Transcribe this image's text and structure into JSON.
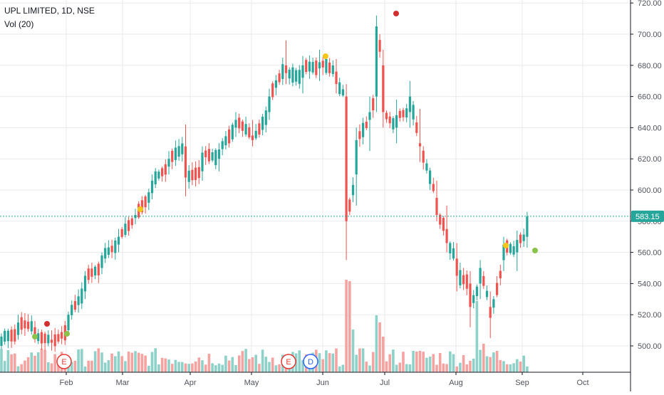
{
  "legend": {
    "title": "UPL LIMITED, 1D, NSE",
    "volume": "Vol (20)"
  },
  "colors": {
    "up": "#26a69a",
    "down": "#ef5350",
    "vol_up": "#8ed1c9",
    "vol_down": "#f5a3a1",
    "grid": "#e8eaee",
    "axis_text": "#50535e",
    "price_line": "#26a69a",
    "price_label_bg": "#26a69a"
  },
  "chart_data": {
    "type": "candlestick",
    "title": "UPL LIMITED, 1D, NSE",
    "x_ticks": [
      "Feb",
      "Mar",
      "Apr",
      "May",
      "Jun",
      "Jul",
      "Aug",
      "Sep",
      "Oct"
    ],
    "y_ticks": [
      "500.00",
      "520.00",
      "540.00",
      "560.00",
      "580.00",
      "600.00",
      "620.00",
      "640.00",
      "660.00",
      "680.00",
      "700.00",
      "720.00"
    ],
    "ylim": [
      482,
      722
    ],
    "last_price": 583.15,
    "last_price_label": "583.15",
    "grid": true,
    "series": [
      {
        "name": "price",
        "ohlc_anchors": [
          [
            0,
            500,
            508,
            498,
            506
          ],
          [
            5,
            507,
            520,
            504,
            515
          ],
          [
            10,
            512,
            516,
            502,
            506
          ],
          [
            15,
            504,
            510,
            497,
            502
          ],
          [
            20,
            510,
            522,
            508,
            520
          ],
          [
            25,
            535,
            548,
            530,
            545
          ],
          [
            30,
            550,
            560,
            546,
            558
          ],
          [
            35,
            565,
            575,
            560,
            570
          ],
          [
            40,
            582,
            588,
            578,
            584
          ],
          [
            45,
            598,
            610,
            594,
            606
          ],
          [
            50,
            615,
            625,
            610,
            620
          ],
          [
            55,
            628,
            642,
            596,
            608
          ],
          [
            60,
            612,
            628,
            606,
            624
          ],
          [
            65,
            620,
            630,
            612,
            626
          ],
          [
            70,
            640,
            650,
            634,
            645
          ],
          [
            75,
            635,
            645,
            628,
            632
          ],
          [
            80,
            650,
            665,
            645,
            660
          ],
          [
            85,
            680,
            696,
            668,
            675
          ],
          [
            90,
            672,
            686,
            662,
            680
          ],
          [
            95,
            678,
            690,
            670,
            682
          ],
          [
            100,
            676,
            684,
            662,
            668
          ],
          [
            103,
            660,
            668,
            555,
            580
          ],
          [
            106,
            610,
            640,
            590,
            632
          ],
          [
            110,
            645,
            660,
            625,
            650
          ],
          [
            112,
            660,
            712,
            650,
            705
          ],
          [
            114,
            680,
            690,
            640,
            650
          ],
          [
            118,
            640,
            658,
            630,
            648
          ],
          [
            122,
            650,
            670,
            640,
            660
          ],
          [
            125,
            630,
            652,
            618,
            628
          ],
          [
            130,
            595,
            606,
            580,
            584
          ],
          [
            133,
            575,
            590,
            560,
            566
          ],
          [
            136,
            556,
            566,
            535,
            545
          ],
          [
            140,
            540,
            548,
            512,
            525
          ],
          [
            143,
            540,
            555,
            530,
            550
          ],
          [
            146,
            525,
            535,
            505,
            518
          ],
          [
            150,
            555,
            570,
            548,
            565
          ],
          [
            154,
            560,
            574,
            548,
            568
          ],
          [
            157,
            570,
            586,
            563,
            583
          ]
        ]
      }
    ],
    "events": [
      {
        "label": "E",
        "type": "earnings"
      },
      {
        "label": "E",
        "type": "earnings"
      },
      {
        "label": "D",
        "type": "dividend"
      }
    ]
  }
}
